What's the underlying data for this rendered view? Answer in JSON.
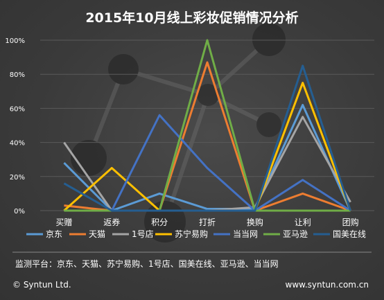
{
  "title": "2015年10月线上彩妆促销情况分析",
  "monitor_note": "监测平台：京东、天猫、苏宁易购、1号店、国美在线、亚马逊、当当网",
  "copyright": "© Syntun Ltd.",
  "website": "www.syntun.com.cn",
  "chart_data": {
    "type": "line",
    "title": "2015年10月线上彩妆促销情况分析",
    "categories": [
      "买赠",
      "返券",
      "积分",
      "打折",
      "换购",
      "让利",
      "团购"
    ],
    "y_ticks": [
      "0%",
      "20%",
      "40%",
      "60%",
      "80%",
      "100%"
    ],
    "ylim": [
      0,
      100
    ],
    "legend_position": "bottom",
    "series": [
      {
        "name": "京东",
        "color": "#5b9bd5",
        "values": [
          28,
          0,
          10,
          1,
          1,
          62,
          0
        ]
      },
      {
        "name": "天猫",
        "color": "#ed7d31",
        "values": [
          3,
          0,
          0,
          87,
          0,
          10,
          0
        ]
      },
      {
        "name": "1号店",
        "color": "#a5a5a5",
        "values": [
          40,
          0,
          0,
          0,
          2,
          55,
          5
        ]
      },
      {
        "name": "苏宁易购",
        "color": "#ffc000",
        "values": [
          0,
          25,
          0,
          0,
          0,
          75,
          0
        ]
      },
      {
        "name": "当当网",
        "color": "#4472c4",
        "values": [
          0,
          0,
          56,
          25,
          0,
          18,
          0
        ]
      },
      {
        "name": "亚马逊",
        "color": "#70ad47",
        "values": [
          0,
          0,
          0,
          100,
          0,
          0,
          0
        ]
      },
      {
        "name": "国美在线",
        "color": "#255e91",
        "values": [
          16,
          0,
          0,
          0,
          0,
          85,
          0
        ]
      }
    ]
  }
}
